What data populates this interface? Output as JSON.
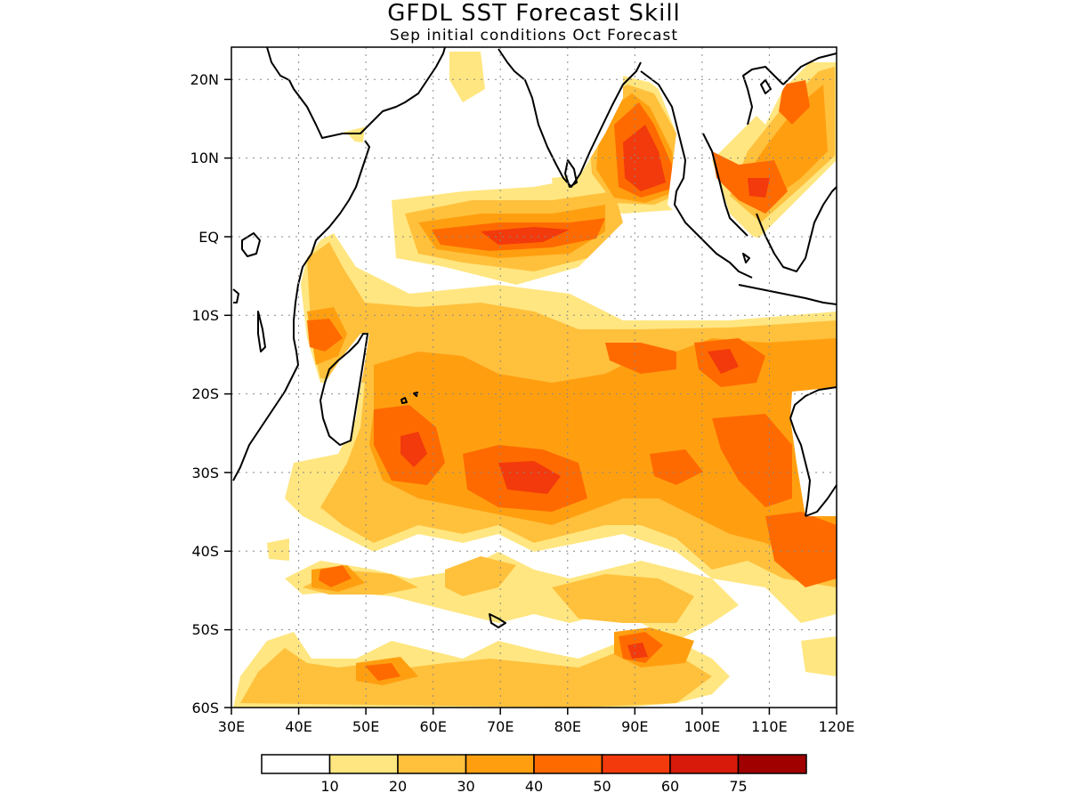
{
  "title": "GFDL SST Forecast Skill",
  "subtitle": "Sep initial conditions  Oct Forecast",
  "map": {
    "lon_range": [
      30,
      120
    ],
    "lat_range": [
      -60,
      24
    ],
    "x_ticks": [
      "30E",
      "40E",
      "50E",
      "60E",
      "70E",
      "80E",
      "90E",
      "100E",
      "110E",
      "120E"
    ],
    "y_ticks": [
      "20N",
      "10N",
      "EQ",
      "10S",
      "20S",
      "30S",
      "40S",
      "50S",
      "60S"
    ],
    "grid": "dotted"
  },
  "legend": {
    "levels": [
      "10",
      "20",
      "30",
      "40",
      "50",
      "60",
      "75"
    ],
    "colors": [
      "#ffffff",
      "#ffe680",
      "#ffc03c",
      "#ff9f10",
      "#ff6a00",
      "#f23a0c",
      "#d81a0a",
      "#a00000"
    ]
  }
}
